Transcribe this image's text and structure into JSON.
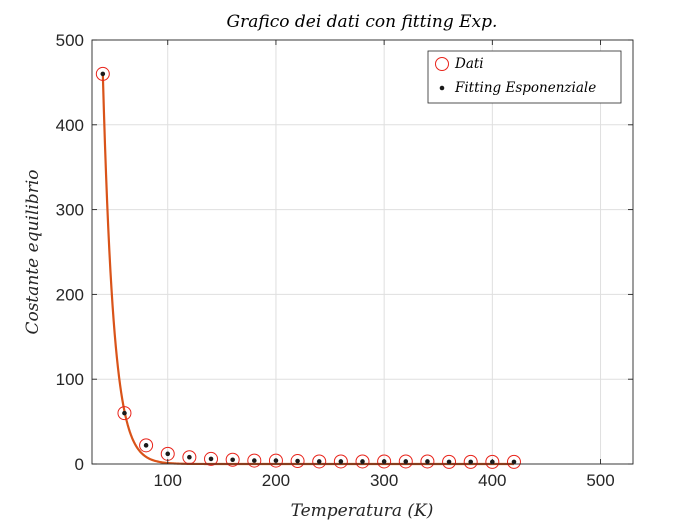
{
  "chart_data": {
    "type": "scatter",
    "title": "Grafico dei dati con fitting Exp.",
    "xlabel": "Temperatura (K)",
    "ylabel": "Costante equilibrio",
    "xlim": [
      30,
      530
    ],
    "ylim": [
      0,
      500
    ],
    "xticks": [
      100,
      200,
      300,
      400,
      500
    ],
    "yticks": [
      0,
      100,
      200,
      300,
      400,
      500
    ],
    "grid": true,
    "legend_position": "top-right",
    "series": [
      {
        "name": "Dati",
        "marker": "open-circle",
        "color": "#e8231a",
        "x": [
          40,
          60,
          80,
          100,
          120,
          140,
          160,
          180,
          200,
          220,
          240,
          260,
          280,
          300,
          320,
          340,
          360,
          380,
          400,
          420
        ],
        "y": [
          460,
          60,
          22,
          12,
          8,
          6,
          5,
          4,
          4,
          3.5,
          3,
          3,
          3,
          3,
          3,
          3,
          2.5,
          2.5,
          2.5,
          2.5
        ]
      },
      {
        "name": "Fitting Esponenziale",
        "marker": "dot",
        "color": "#1a1a1a",
        "x": [
          40,
          60,
          80,
          100,
          120,
          140,
          160,
          180,
          200,
          220,
          240,
          260,
          280,
          300,
          320,
          340,
          360,
          380,
          400,
          420
        ],
        "y": [
          460,
          60,
          22,
          12,
          8,
          6,
          5,
          4,
          4,
          3.5,
          3,
          3,
          3,
          3,
          3,
          3,
          2.5,
          2.5,
          2.5,
          2.5
        ]
      }
    ],
    "fit_curve": {
      "type": "exponential",
      "color": "#d95319",
      "x_range": [
        40,
        420
      ],
      "y0": 460,
      "x0": 40,
      "decay": 0.1
    }
  }
}
